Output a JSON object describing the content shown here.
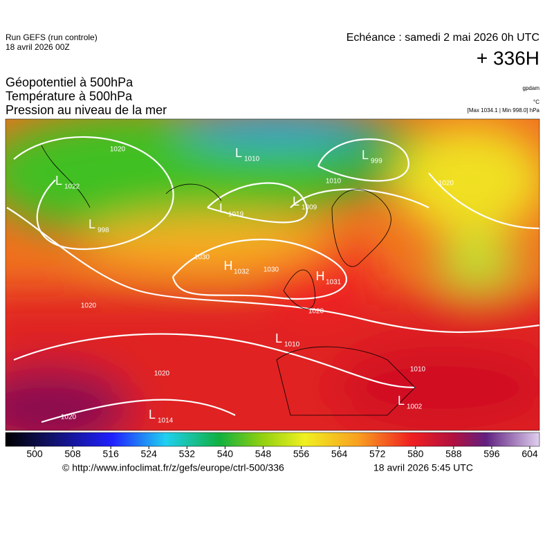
{
  "header": {
    "run": "Run GEFS (run controle)",
    "date": "18 avril 2026 00Z",
    "echeance": "Echéance : samedi 2 mai 2026 0h UTC",
    "lead": "+ 336H",
    "fields": [
      "Géopotentiel à 500hPa",
      "Température à 500hPa",
      "Pression au niveau de la mer"
    ],
    "units": [
      "gpdam",
      "°C",
      "[Max 1034.1 | Min 998.0] hPa"
    ]
  },
  "map": {
    "centers": [
      {
        "type": "L",
        "value": 1010
      },
      {
        "type": "L",
        "value": 999
      },
      {
        "type": "L",
        "value": 1022
      },
      {
        "type": "H",
        "value": 1032
      },
      {
        "type": "L",
        "value": 1009
      },
      {
        "type": "L",
        "value": 998
      },
      {
        "type": "L",
        "value": 1019
      },
      {
        "type": "H",
        "value": 1031
      },
      {
        "type": "L",
        "value": 1010
      },
      {
        "type": "L",
        "value": 1014
      },
      {
        "type": "L",
        "value": 1002
      }
    ],
    "isobar_labels": [
      1020,
      1030,
      1030,
      1020,
      1020,
      1020,
      1020,
      1010,
      1010,
      1020
    ]
  },
  "colorbar": {
    "ticks": [
      500,
      508,
      516,
      524,
      532,
      540,
      548,
      556,
      564,
      572,
      580,
      588,
      596,
      604
    ]
  },
  "footer": {
    "source": "© http://www.infoclimat.fr/z/gefs/europe/ctrl-500/336",
    "issued": "18 avril 2026  5:45 UTC"
  }
}
